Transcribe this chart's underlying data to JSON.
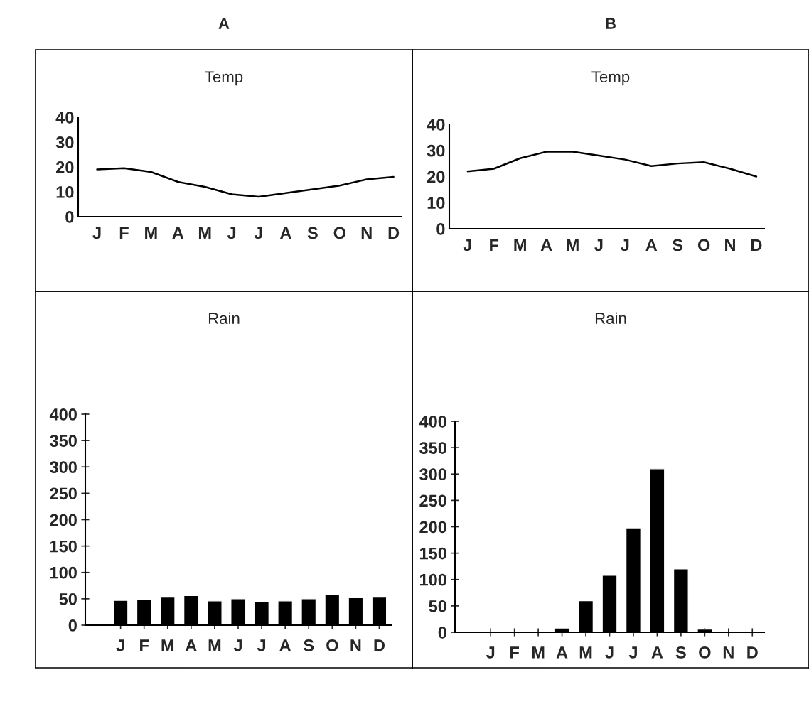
{
  "chart_data": [
    {
      "type": "line",
      "title": "Temp",
      "annotations": [
        "A"
      ],
      "categories": [
        "J",
        "F",
        "M",
        "A",
        "M",
        "J",
        "J",
        "A",
        "S",
        "O",
        "N",
        "D"
      ],
      "series": [
        {
          "color": "#000000",
          "values": [
            19,
            19.5,
            18,
            14,
            12,
            9,
            8,
            9.5,
            11,
            12.5,
            15,
            16
          ]
        }
      ],
      "ylim": [
        0,
        40
      ],
      "yticks": [
        0,
        10,
        20,
        30,
        40
      ],
      "grid": false
    },
    {
      "type": "line",
      "title": "Temp",
      "annotations": [
        "B"
      ],
      "categories": [
        "J",
        "F",
        "M",
        "A",
        "M",
        "J",
        "J",
        "A",
        "S",
        "O",
        "N",
        "D"
      ],
      "series": [
        {
          "color": "#000000",
          "values": [
            22,
            23,
            27,
            29.5,
            29.5,
            28,
            26.5,
            24,
            25,
            25.5,
            23,
            20
          ]
        }
      ],
      "ylim": [
        0,
        40
      ],
      "yticks": [
        0,
        10,
        20,
        30,
        40
      ],
      "grid": false
    },
    {
      "type": "bar",
      "title": "Rain",
      "categories": [
        "J",
        "F",
        "M",
        "A",
        "M",
        "J",
        "J",
        "A",
        "S",
        "O",
        "N",
        "D"
      ],
      "series": [
        {
          "color": "#000000",
          "values": [
            47,
            48,
            53,
            56,
            46,
            50,
            44,
            46,
            50,
            59,
            52,
            53
          ]
        }
      ],
      "ylim": [
        0,
        400
      ],
      "yticks": [
        0,
        50,
        100,
        150,
        200,
        250,
        300,
        350,
        400
      ],
      "grid": false
    },
    {
      "type": "bar",
      "title": "Rain",
      "categories": [
        "J",
        "F",
        "M",
        "A",
        "M",
        "J",
        "J",
        "A",
        "S",
        "O",
        "N",
        "D"
      ],
      "series": [
        {
          "color": "#000000",
          "values": [
            null,
            null,
            null,
            8,
            60,
            108,
            198,
            310,
            120,
            6,
            null,
            null
          ]
        }
      ],
      "ylim": [
        0,
        400
      ],
      "yticks": [
        0,
        50,
        100,
        150,
        200,
        250,
        300,
        350,
        400
      ],
      "grid": false
    }
  ]
}
